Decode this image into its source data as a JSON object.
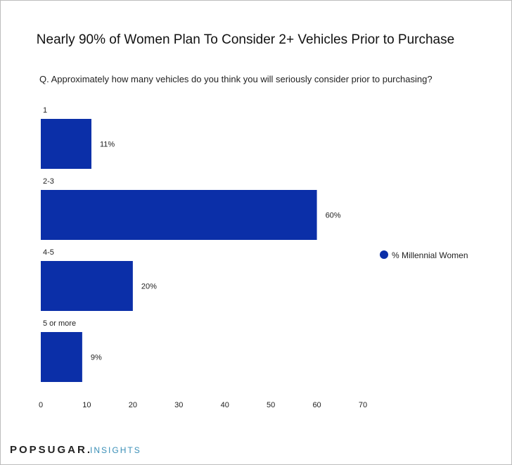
{
  "chart_data": {
    "type": "bar",
    "orientation": "horizontal",
    "title": "Nearly 90% of Women Plan To Consider 2+ Vehicles Prior to Purchase",
    "subtitle": "Q. Approximately how many vehicles do you think you will seriously consider prior to purchasing?",
    "categories": [
      "1",
      "2-3",
      "4-5",
      "5 or more"
    ],
    "series": [
      {
        "name": "% Millennial Women",
        "values": [
          11,
          60,
          20,
          9
        ],
        "labels": [
          "11%",
          "60%",
          "20%",
          "9%"
        ],
        "color": "#0b2fa8"
      }
    ],
    "xlim": [
      0,
      70
    ],
    "xticks": [
      "0",
      "10",
      "20",
      "30",
      "40",
      "50",
      "60",
      "70"
    ],
    "grid": false,
    "legend_position": "right"
  },
  "brand": {
    "name": "POPSUGAR",
    "dot": ".",
    "suffix": "INSIGHTS"
  }
}
